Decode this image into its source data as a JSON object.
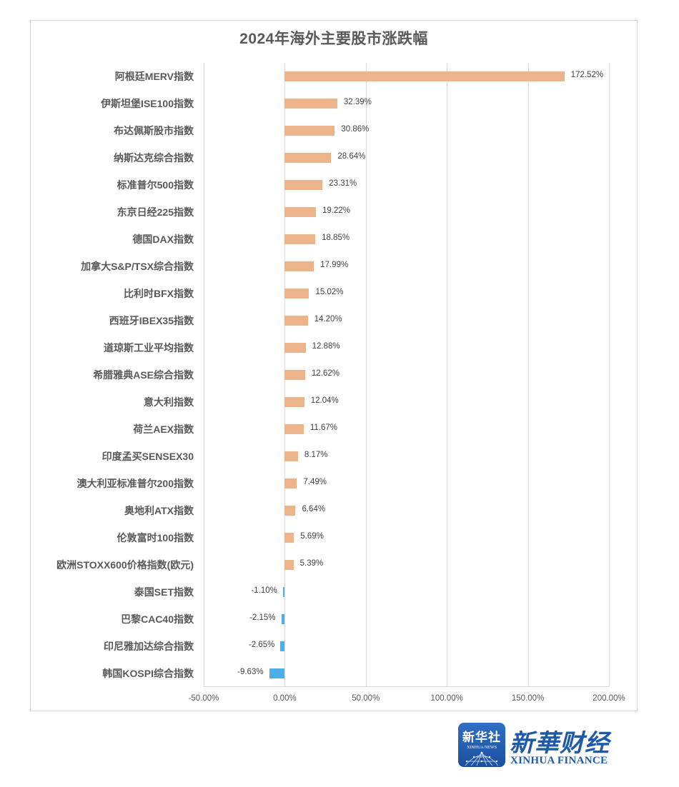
{
  "chart_data": {
    "type": "bar",
    "orientation": "horizontal",
    "title": "2024年海外主要股市涨跌幅",
    "xlabel": "",
    "ylabel": "",
    "xlim": [
      -50,
      200
    ],
    "x_ticks": [
      "-50.00%",
      "0.00%",
      "50.00%",
      "100.00%",
      "150.00%",
      "200.00%"
    ],
    "grid": true,
    "legend": null,
    "colors": {
      "positive": "#ebb48a",
      "negative": "#4eaee8"
    },
    "categories": [
      "阿根廷MERV指数",
      "伊斯坦堡ISE100指数",
      "布达佩斯股市指数",
      "纳斯达克综合指数",
      "标准普尔500指数",
      "东京日经225指数",
      "德国DAX指数",
      "加拿大S&P/TSX综合指数",
      "比利时BFX指数",
      "西班牙IBEX35指数",
      "道琼斯工业平均指数",
      "希腊雅典ASE综合指数",
      "意大利指数",
      "荷兰AEX指数",
      "印度孟买SENSEX30",
      "澳大利亚标准普尔200指数",
      "奥地利ATX指数",
      "伦敦富时100指数",
      "欧洲STOXX600价格指数(欧元)",
      "泰国SET指数",
      "巴黎CAC40指数",
      "印尼雅加达综合指数",
      "韩国KOSPI综合指数"
    ],
    "values": [
      172.52,
      32.39,
      30.86,
      28.64,
      23.31,
      19.22,
      18.85,
      17.99,
      15.02,
      14.2,
      12.88,
      12.62,
      12.04,
      11.67,
      8.17,
      7.49,
      6.64,
      5.69,
      5.39,
      -1.1,
      -2.15,
      -2.65,
      -9.63
    ],
    "value_labels": [
      "172.52%",
      "32.39%",
      "30.86%",
      "28.64%",
      "23.31%",
      "19.22%",
      "18.85%",
      "17.99%",
      "15.02%",
      "14.20%",
      "12.88%",
      "12.62%",
      "12.04%",
      "11.67%",
      "8.17%",
      "7.49%",
      "6.64%",
      "5.69%",
      "5.39%",
      "-1.10%",
      "-2.15%",
      "-2.65%",
      "-9.63%"
    ]
  },
  "branding": {
    "logo_cn": "新华社",
    "logo_en": "XINHUA NEWS",
    "brand_cn": "新華财经",
    "brand_en": "XINHUA FINANCE"
  }
}
